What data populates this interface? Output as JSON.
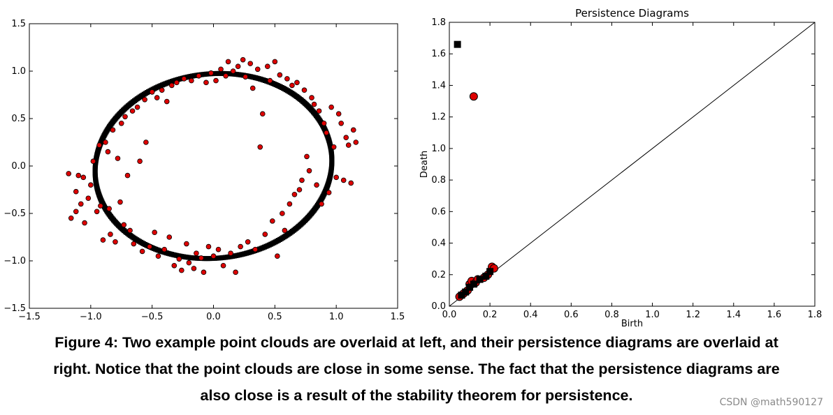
{
  "chart_data": [
    {
      "type": "scatter",
      "title": "",
      "xlabel": "",
      "ylabel": "",
      "xlim": [
        -1.5,
        1.5
      ],
      "ylim": [
        -1.5,
        1.5
      ],
      "xticks": [
        "−1.5",
        "−1.0",
        "−0.5",
        "0.0",
        "0.5",
        "1.0",
        "1.5"
      ],
      "yticks": [
        "−1.5",
        "−1.0",
        "−0.5",
        "0.0",
        "0.5",
        "1.0",
        "1.5"
      ],
      "grid": false,
      "series": [
        {
          "marker": "square",
          "color": "#000000",
          "shape": "ellipse",
          "center": [
            0,
            0
          ],
          "semi_axes": [
            1.0,
            1.0
          ],
          "note_values": "sampled densely along the ellipse",
          "values": []
        },
        {
          "marker": "circle",
          "color": "#dd0000",
          "values": [
            [
              -1.18,
              -0.08
            ],
            [
              -1.16,
              -0.55
            ],
            [
              -1.12,
              -0.27
            ],
            [
              -1.12,
              -0.48
            ],
            [
              -1.1,
              -0.1
            ],
            [
              -1.08,
              -0.4
            ],
            [
              -1.06,
              -0.12
            ],
            [
              -1.05,
              -0.6
            ],
            [
              -1.02,
              -0.34
            ],
            [
              -1.0,
              -0.2
            ],
            [
              -0.98,
              0.05
            ],
            [
              -0.95,
              -0.48
            ],
            [
              -0.93,
              0.22
            ],
            [
              -0.92,
              -0.42
            ],
            [
              -0.9,
              -0.78
            ],
            [
              -0.88,
              0.25
            ],
            [
              -0.86,
              0.15
            ],
            [
              -0.85,
              -0.45
            ],
            [
              -0.84,
              -0.72
            ],
            [
              -0.82,
              0.38
            ],
            [
              -0.8,
              -0.8
            ],
            [
              -0.78,
              0.08
            ],
            [
              -0.76,
              -0.38
            ],
            [
              -0.75,
              0.45
            ],
            [
              -0.73,
              -0.62
            ],
            [
              -0.72,
              0.52
            ],
            [
              -0.7,
              -0.1
            ],
            [
              -0.68,
              -0.68
            ],
            [
              -0.66,
              0.58
            ],
            [
              -0.65,
              -0.82
            ],
            [
              -0.62,
              0.62
            ],
            [
              -0.6,
              0.05
            ],
            [
              -0.58,
              -0.9
            ],
            [
              -0.56,
              0.7
            ],
            [
              -0.55,
              0.25
            ],
            [
              -0.52,
              -0.85
            ],
            [
              -0.5,
              0.78
            ],
            [
              -0.48,
              -0.7
            ],
            [
              -0.46,
              0.72
            ],
            [
              -0.45,
              -0.95
            ],
            [
              -0.42,
              0.8
            ],
            [
              -0.4,
              -0.88
            ],
            [
              -0.38,
              0.68
            ],
            [
              -0.36,
              -0.75
            ],
            [
              -0.34,
              0.85
            ],
            [
              -0.32,
              -1.05
            ],
            [
              -0.3,
              0.88
            ],
            [
              -0.28,
              -0.98
            ],
            [
              -0.26,
              -1.1
            ],
            [
              -0.24,
              0.92
            ],
            [
              -0.22,
              -0.82
            ],
            [
              -0.2,
              -1.02
            ],
            [
              -0.18,
              0.9
            ],
            [
              -0.16,
              -1.08
            ],
            [
              -0.14,
              -0.92
            ],
            [
              -0.12,
              0.95
            ],
            [
              -0.1,
              -0.97
            ],
            [
              -0.08,
              -1.12
            ],
            [
              -0.06,
              0.88
            ],
            [
              -0.04,
              -0.85
            ],
            [
              -0.02,
              0.98
            ],
            [
              0.0,
              -0.95
            ],
            [
              0.02,
              0.9
            ],
            [
              0.04,
              -0.88
            ],
            [
              0.06,
              1.02
            ],
            [
              0.08,
              -1.05
            ],
            [
              0.1,
              0.95
            ],
            [
              0.12,
              1.1
            ],
            [
              0.14,
              -0.92
            ],
            [
              0.16,
              1.0
            ],
            [
              0.18,
              -1.12
            ],
            [
              0.2,
              1.05
            ],
            [
              0.22,
              -0.85
            ],
            [
              0.24,
              1.12
            ],
            [
              0.26,
              0.94
            ],
            [
              0.28,
              -0.8
            ],
            [
              0.3,
              1.08
            ],
            [
              0.32,
              0.82
            ],
            [
              0.34,
              -0.88
            ],
            [
              0.36,
              1.02
            ],
            [
              0.38,
              0.2
            ],
            [
              0.4,
              0.55
            ],
            [
              0.42,
              -0.72
            ],
            [
              0.44,
              1.05
            ],
            [
              0.46,
              0.9
            ],
            [
              0.48,
              -0.58
            ],
            [
              0.5,
              1.1
            ],
            [
              0.52,
              -0.95
            ],
            [
              0.54,
              0.96
            ],
            [
              0.56,
              -0.5
            ],
            [
              0.58,
              -0.68
            ],
            [
              0.6,
              0.92
            ],
            [
              0.62,
              -0.4
            ],
            [
              0.64,
              0.85
            ],
            [
              0.66,
              -0.3
            ],
            [
              0.68,
              0.88
            ],
            [
              0.7,
              -0.25
            ],
            [
              0.72,
              -0.15
            ],
            [
              0.74,
              0.8
            ],
            [
              0.76,
              0.1
            ],
            [
              0.78,
              -0.05
            ],
            [
              0.8,
              0.72
            ],
            [
              0.82,
              0.65
            ],
            [
              0.84,
              -0.2
            ],
            [
              0.86,
              0.58
            ],
            [
              0.88,
              -0.4
            ],
            [
              0.9,
              0.45
            ],
            [
              0.92,
              0.35
            ],
            [
              0.94,
              -0.28
            ],
            [
              0.96,
              0.62
            ],
            [
              0.98,
              0.2
            ],
            [
              1.0,
              -0.12
            ],
            [
              1.02,
              0.55
            ],
            [
              1.04,
              0.45
            ],
            [
              1.06,
              -0.15
            ],
            [
              1.08,
              0.3
            ],
            [
              1.1,
              0.22
            ],
            [
              1.12,
              -0.18
            ],
            [
              1.14,
              0.38
            ],
            [
              1.16,
              0.25
            ]
          ]
        }
      ]
    },
    {
      "type": "scatter",
      "title": "Persistence Diagrams",
      "xlabel": "Birth",
      "ylabel": "Death",
      "xlim": [
        0.0,
        1.8
      ],
      "ylim": [
        0.0,
        1.8
      ],
      "xticks": [
        "0.0",
        "0.2",
        "0.4",
        "0.6",
        "0.8",
        "1.0",
        "1.2",
        "1.4",
        "1.6",
        "1.8"
      ],
      "yticks": [
        "0.0",
        "0.2",
        "0.4",
        "0.6",
        "0.8",
        "1.0",
        "1.2",
        "1.4",
        "1.6",
        "1.8"
      ],
      "grid": false,
      "diagonal": true,
      "series": [
        {
          "marker": "square",
          "color": "#000000",
          "values": [
            [
              0.04,
              1.66
            ],
            [
              0.06,
              0.07
            ],
            [
              0.08,
              0.09
            ],
            [
              0.1,
              0.12
            ],
            [
              0.12,
              0.14
            ],
            [
              0.15,
              0.17
            ],
            [
              0.18,
              0.19
            ],
            [
              0.2,
              0.22
            ]
          ]
        },
        {
          "marker": "circle",
          "color": "#dd0000",
          "values": [
            [
              0.12,
              1.33
            ],
            [
              0.05,
              0.06
            ],
            [
              0.07,
              0.08
            ],
            [
              0.09,
              0.1
            ],
            [
              0.1,
              0.14
            ],
            [
              0.11,
              0.16
            ],
            [
              0.13,
              0.15
            ],
            [
              0.14,
              0.17
            ],
            [
              0.17,
              0.18
            ],
            [
              0.19,
              0.2
            ],
            [
              0.21,
              0.25
            ],
            [
              0.22,
              0.24
            ]
          ]
        }
      ]
    }
  ],
  "caption": {
    "line1": "Figure 4: Two example point clouds are overlaid at left, and their persistence diagrams are overlaid at",
    "line2": "right. Notice that the point clouds are close in some sense. The fact that the persistence diagrams are",
    "line3": "also close is a result of the stability theorem for persistence."
  },
  "watermark": "CSDN @math590127"
}
